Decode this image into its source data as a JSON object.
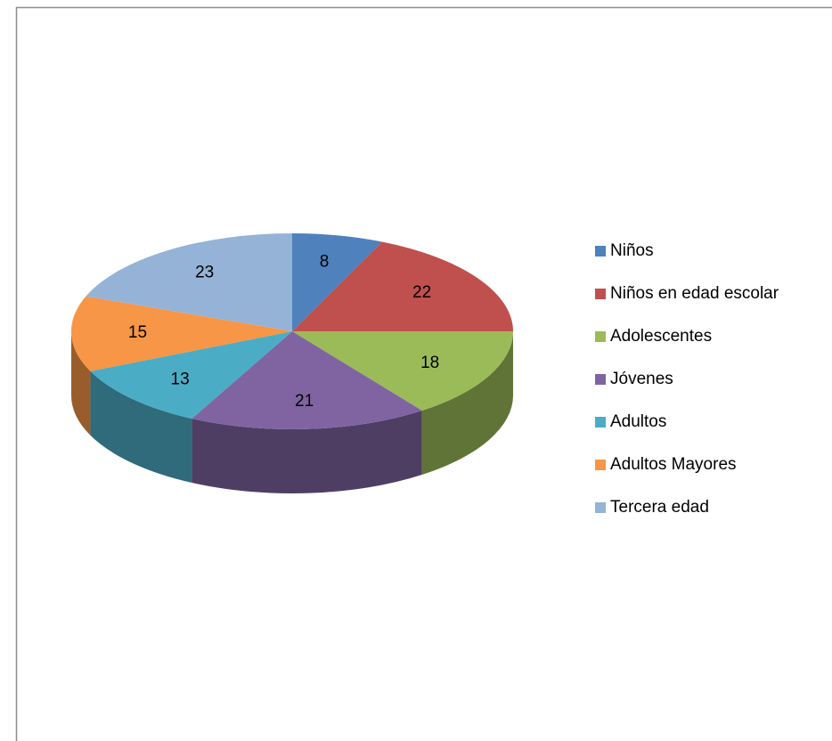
{
  "chart_data": {
    "type": "pie",
    "three_d": true,
    "legend": "right",
    "categories": [
      "Niños",
      "Niños en edad escolar",
      "Adolescentes",
      "Jóvenes",
      "Adultos",
      "Adultos Mayores",
      "Tercera edad"
    ],
    "values": [
      8,
      22,
      18,
      21,
      13,
      15,
      23
    ],
    "colors": [
      "#4f81bd",
      "#c0504d",
      "#9bbb59",
      "#8064a2",
      "#4bacc6",
      "#f79646",
      "#95b3d7"
    ]
  }
}
